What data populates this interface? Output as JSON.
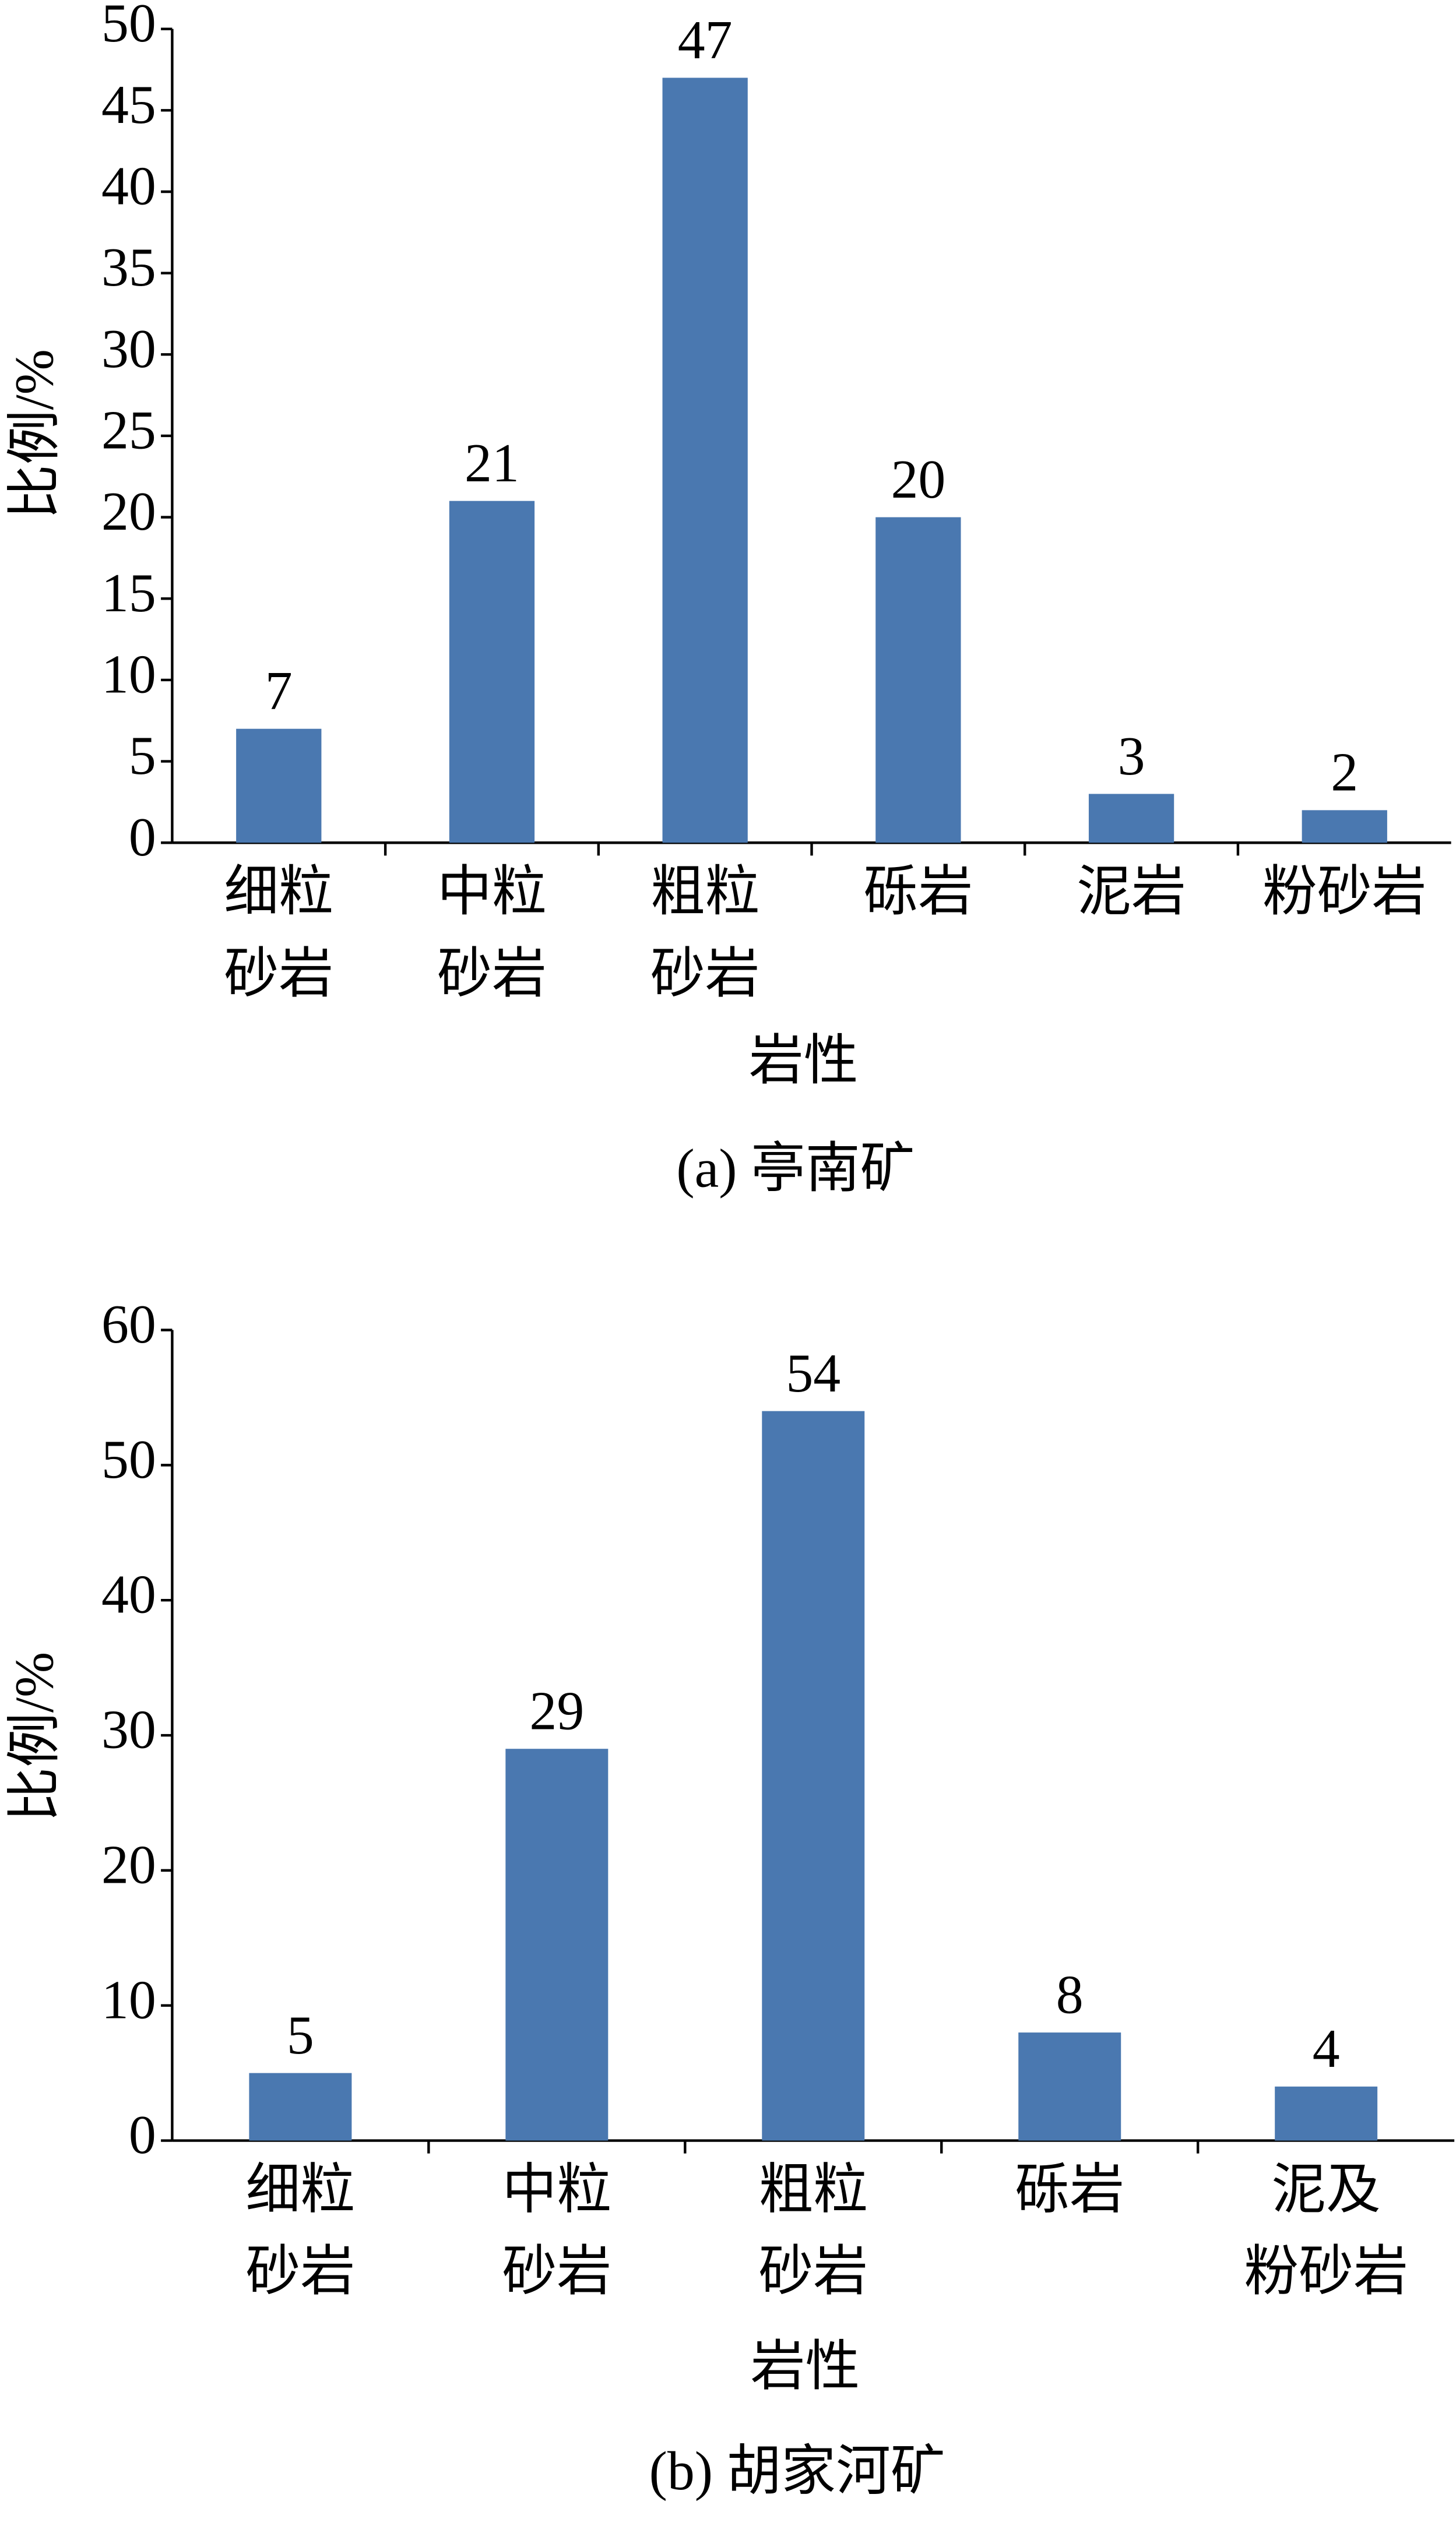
{
  "chart_data": [
    {
      "type": "bar",
      "title": "(a)  亭南矿",
      "x_label": "岩性",
      "y_label": "比例/%",
      "categories": [
        [
          "细粒",
          "砂岩"
        ],
        [
          "中粒",
          "砂岩"
        ],
        [
          "粗粒",
          "砂岩"
        ],
        [
          "砾岩"
        ],
        [
          "泥岩"
        ],
        [
          "粉砂岩"
        ]
      ],
      "values": [
        7,
        21,
        47,
        20,
        3,
        2
      ],
      "color": "#4a78b0",
      "ylim": [
        0,
        50
      ],
      "yticks": [
        0,
        5,
        10,
        15,
        20,
        25,
        30,
        35,
        40,
        45,
        50
      ]
    },
    {
      "type": "bar",
      "title": "(b)  胡家河矿",
      "x_label": "岩性",
      "y_label": "比例/%",
      "categories": [
        [
          "细粒",
          "砂岩"
        ],
        [
          "中粒",
          "砂岩"
        ],
        [
          "粗粒",
          "砂岩"
        ],
        [
          "砾岩"
        ],
        [
          "泥及",
          "粉砂岩"
        ]
      ],
      "values": [
        5,
        29,
        54,
        8,
        4
      ],
      "color": "#4a78b0",
      "ylim": [
        0,
        60
      ],
      "yticks": [
        0,
        10,
        20,
        30,
        40,
        50,
        60
      ]
    }
  ]
}
